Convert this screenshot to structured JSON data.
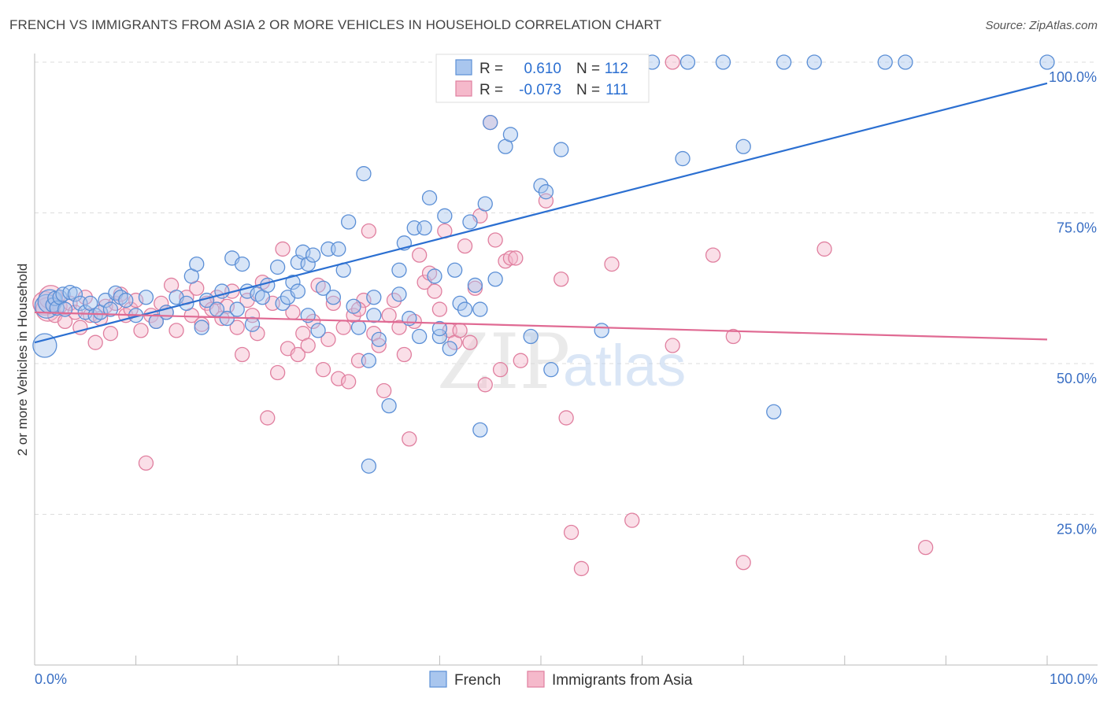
{
  "header": {
    "title": "FRENCH VS IMMIGRANTS FROM ASIA 2 OR MORE VEHICLES IN HOUSEHOLD CORRELATION CHART",
    "source": "Source: ZipAtlas.com"
  },
  "watermark": {
    "zip": "ZIP",
    "atlas": "atlas"
  },
  "colors": {
    "blue_fill": "#a9c6ee",
    "blue_stroke": "#5b8fd6",
    "blue_line": "#2b6fd1",
    "pink_fill": "#f5b9cb",
    "pink_stroke": "#e07f9f",
    "pink_line": "#e06a93",
    "tick_text": "#3a6fc4",
    "grid": "#dddddd"
  },
  "stats": {
    "french": {
      "r_label": "R =",
      "r_value": "0.610",
      "n_label": "N =",
      "n_value": "112"
    },
    "asia": {
      "r_label": "R =",
      "r_value": "-0.073",
      "n_label": "N =",
      "n_value": "111"
    }
  },
  "chart_data": {
    "type": "scatter",
    "title": "FRENCH VS IMMIGRANTS FROM ASIA 2 OR MORE VEHICLES IN HOUSEHOLD CORRELATION CHART",
    "xlabel": "",
    "ylabel": "2 or more Vehicles in Household",
    "xlim": [
      0,
      100
    ],
    "ylim": [
      0,
      100
    ],
    "x_tick_labels": [
      "0.0%",
      "100.0%"
    ],
    "y_ticks": [
      25,
      50,
      75,
      100
    ],
    "y_tick_labels": [
      "25.0%",
      "50.0%",
      "75.0%",
      "100.0%"
    ],
    "grid": "horizontal dashed",
    "legend": {
      "placement": "bottom-center",
      "entries": [
        "French",
        "Immigrants from Asia"
      ]
    },
    "series": [
      {
        "name": "French",
        "color": "#5b8fd6",
        "trend": {
          "x0": 0,
          "y0": 53.5,
          "x1": 100,
          "y1": 96.5
        },
        "points": [
          [
            1.0,
            53.0
          ],
          [
            1.2,
            59.5
          ],
          [
            1.5,
            60.3
          ],
          [
            1.8,
            59.7
          ],
          [
            2.0,
            60.8
          ],
          [
            2.2,
            59.2
          ],
          [
            2.5,
            61.0
          ],
          [
            2.8,
            61.5
          ],
          [
            3.0,
            59.0
          ],
          [
            3.5,
            61.8
          ],
          [
            4.0,
            61.5
          ],
          [
            4.5,
            60.0
          ],
          [
            5.0,
            58.5
          ],
          [
            5.5,
            60.0
          ],
          [
            6.0,
            58.0
          ],
          [
            6.5,
            58.5
          ],
          [
            7.0,
            60.5
          ],
          [
            7.5,
            59.0
          ],
          [
            8.0,
            61.7
          ],
          [
            8.5,
            61.0
          ],
          [
            9.0,
            60.5
          ],
          [
            10.0,
            58.0
          ],
          [
            11.0,
            61.0
          ],
          [
            12.0,
            57.0
          ],
          [
            13.0,
            58.5
          ],
          [
            14.0,
            61.0
          ],
          [
            15.0,
            60.0
          ],
          [
            15.5,
            64.5
          ],
          [
            16.0,
            66.5
          ],
          [
            16.5,
            56.0
          ],
          [
            17.0,
            60.5
          ],
          [
            18.0,
            59.0
          ],
          [
            18.5,
            62.0
          ],
          [
            19.0,
            57.5
          ],
          [
            19.5,
            67.5
          ],
          [
            20.0,
            59.0
          ],
          [
            20.5,
            66.5
          ],
          [
            21.0,
            62.0
          ],
          [
            21.5,
            56.5
          ],
          [
            22.0,
            61.5
          ],
          [
            22.5,
            61.0
          ],
          [
            23.0,
            63.0
          ],
          [
            24.0,
            66.0
          ],
          [
            24.5,
            60.0
          ],
          [
            25.0,
            61.0
          ],
          [
            25.5,
            63.5
          ],
          [
            26.0,
            66.8
          ],
          [
            26.5,
            68.5
          ],
          [
            27.0,
            66.5
          ],
          [
            27.5,
            68.0
          ],
          [
            28.0,
            55.5
          ],
          [
            28.5,
            62.5
          ],
          [
            29.0,
            69.0
          ],
          [
            29.5,
            61.0
          ],
          [
            30.0,
            69.0
          ],
          [
            30.5,
            65.5
          ],
          [
            31.0,
            73.5
          ],
          [
            31.5,
            59.5
          ],
          [
            32.0,
            56.0
          ],
          [
            32.5,
            81.5
          ],
          [
            33.0,
            50.5
          ],
          [
            33.5,
            61.0
          ],
          [
            34.0,
            54.0
          ],
          [
            35.0,
            43.0
          ],
          [
            36.0,
            65.5
          ],
          [
            36.5,
            70.0
          ],
          [
            37.0,
            57.5
          ],
          [
            37.5,
            72.5
          ],
          [
            38.0,
            54.5
          ],
          [
            38.5,
            72.5
          ],
          [
            39.0,
            77.5
          ],
          [
            39.5,
            64.5
          ],
          [
            40.0,
            54.5
          ],
          [
            40.5,
            74.5
          ],
          [
            41.0,
            52.5
          ],
          [
            41.5,
            65.5
          ],
          [
            42.0,
            60.0
          ],
          [
            42.5,
            59.0
          ],
          [
            43.0,
            73.5
          ],
          [
            43.5,
            63.0
          ],
          [
            44.0,
            39.0
          ],
          [
            44.5,
            76.5
          ],
          [
            45.0,
            90.0
          ],
          [
            45.5,
            64.0
          ],
          [
            46.5,
            86.0
          ],
          [
            47.0,
            88.0
          ],
          [
            49.0,
            54.5
          ],
          [
            50.0,
            79.5
          ],
          [
            50.5,
            78.5
          ],
          [
            51.0,
            49.0
          ],
          [
            52.0,
            85.5
          ],
          [
            56.0,
            55.5
          ],
          [
            61.0,
            100.0
          ],
          [
            64.0,
            84.0
          ],
          [
            64.5,
            100.0
          ],
          [
            68.0,
            100.0
          ],
          [
            70.0,
            86.0
          ],
          [
            74.0,
            100.0
          ],
          [
            73.0,
            42.0
          ],
          [
            77.0,
            100.0
          ],
          [
            84.0,
            100.0
          ],
          [
            86.0,
            100.0
          ],
          [
            100.0,
            100.0
          ],
          [
            46.5,
            100.0
          ],
          [
            53.5,
            100.0
          ],
          [
            33.0,
            33.0
          ],
          [
            36.0,
            61.5
          ],
          [
            40.0,
            55.8
          ],
          [
            44.0,
            59.0
          ],
          [
            26.0,
            62.0
          ],
          [
            27.0,
            58.0
          ],
          [
            33.5,
            58.0
          ]
        ]
      },
      {
        "name": "Immigrants from Asia",
        "color": "#e07f9f",
        "trend": {
          "x0": 0,
          "y0": 58.5,
          "x1": 100,
          "y1": 54.0
        },
        "points": [
          [
            1.0,
            60.0
          ],
          [
            1.3,
            59.0
          ],
          [
            1.6,
            61.0
          ],
          [
            2.0,
            58.0
          ],
          [
            2.5,
            59.5
          ],
          [
            3.0,
            57.0
          ],
          [
            3.5,
            60.0
          ],
          [
            4.0,
            58.5
          ],
          [
            4.5,
            56.0
          ],
          [
            5.0,
            61.0
          ],
          [
            5.5,
            58.0
          ],
          [
            6.0,
            53.5
          ],
          [
            6.5,
            57.5
          ],
          [
            7.0,
            59.5
          ],
          [
            7.5,
            55.0
          ],
          [
            8.0,
            60.0
          ],
          [
            8.5,
            61.5
          ],
          [
            9.0,
            58.0
          ],
          [
            9.5,
            59.0
          ],
          [
            10.0,
            60.5
          ],
          [
            10.5,
            55.5
          ],
          [
            11.0,
            33.5
          ],
          [
            11.5,
            58.0
          ],
          [
            12.0,
            57.0
          ],
          [
            12.5,
            60.0
          ],
          [
            13.0,
            58.5
          ],
          [
            13.5,
            63.0
          ],
          [
            14.0,
            55.5
          ],
          [
            15.0,
            61.0
          ],
          [
            15.5,
            58.0
          ],
          [
            16.0,
            62.5
          ],
          [
            16.5,
            56.5
          ],
          [
            17.0,
            60.0
          ],
          [
            17.5,
            59.0
          ],
          [
            18.0,
            61.0
          ],
          [
            18.5,
            57.5
          ],
          [
            19.0,
            59.5
          ],
          [
            19.5,
            62.0
          ],
          [
            20.0,
            56.0
          ],
          [
            20.5,
            51.5
          ],
          [
            21.0,
            60.5
          ],
          [
            21.5,
            58.0
          ],
          [
            22.0,
            55.0
          ],
          [
            22.5,
            63.5
          ],
          [
            23.0,
            41.0
          ],
          [
            23.5,
            60.0
          ],
          [
            24.0,
            48.5
          ],
          [
            24.5,
            69.0
          ],
          [
            25.0,
            52.5
          ],
          [
            25.5,
            58.5
          ],
          [
            26.0,
            51.5
          ],
          [
            26.5,
            55.0
          ],
          [
            27.0,
            53.0
          ],
          [
            27.5,
            57.0
          ],
          [
            28.0,
            63.0
          ],
          [
            28.5,
            49.0
          ],
          [
            29.0,
            54.0
          ],
          [
            29.5,
            60.0
          ],
          [
            30.0,
            47.5
          ],
          [
            30.5,
            56.0
          ],
          [
            31.0,
            47.0
          ],
          [
            31.5,
            58.0
          ],
          [
            32.0,
            50.5
          ],
          [
            32.5,
            60.5
          ],
          [
            33.0,
            72.0
          ],
          [
            33.5,
            55.0
          ],
          [
            34.0,
            53.0
          ],
          [
            34.5,
            45.5
          ],
          [
            35.0,
            58.0
          ],
          [
            35.5,
            60.5
          ],
          [
            36.0,
            56.0
          ],
          [
            36.5,
            51.5
          ],
          [
            37.0,
            37.5
          ],
          [
            37.5,
            57.0
          ],
          [
            38.0,
            68.0
          ],
          [
            38.5,
            63.5
          ],
          [
            39.0,
            65.0
          ],
          [
            39.5,
            62.0
          ],
          [
            40.0,
            59.0
          ],
          [
            40.5,
            72.0
          ],
          [
            41.0,
            55.5
          ],
          [
            41.5,
            53.5
          ],
          [
            42.0,
            55.5
          ],
          [
            42.5,
            69.5
          ],
          [
            43.0,
            53.5
          ],
          [
            43.5,
            62.5
          ],
          [
            44.0,
            74.5
          ],
          [
            44.5,
            46.5
          ],
          [
            45.0,
            90.0
          ],
          [
            45.5,
            70.5
          ],
          [
            46.0,
            49.0
          ],
          [
            46.5,
            67.0
          ],
          [
            47.0,
            67.5
          ],
          [
            47.5,
            67.5
          ],
          [
            48.0,
            50.5
          ],
          [
            50.5,
            77.0
          ],
          [
            52.0,
            64.0
          ],
          [
            52.5,
            41.0
          ],
          [
            53.0,
            22.0
          ],
          [
            54.0,
            16.0
          ],
          [
            57.0,
            66.5
          ],
          [
            59.0,
            24.0
          ],
          [
            63.0,
            53.0
          ],
          [
            63.0,
            100.0
          ],
          [
            67.0,
            68.0
          ],
          [
            69.0,
            54.5
          ],
          [
            70.0,
            17.0
          ],
          [
            78.0,
            69.0
          ],
          [
            88.0,
            19.5
          ],
          [
            52.0,
            100.0
          ],
          [
            32.0,
            59.0
          ]
        ]
      }
    ]
  }
}
